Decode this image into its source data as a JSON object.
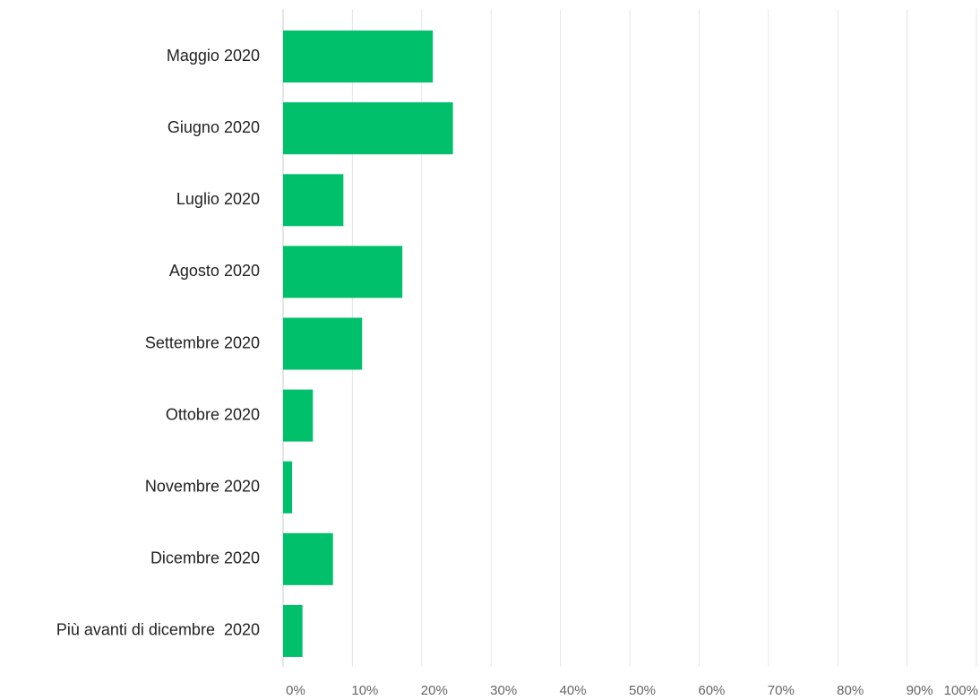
{
  "chart_data": {
    "type": "bar",
    "orientation": "horizontal",
    "categories": [
      "Maggio 2020",
      "Giugno 2020",
      "Luglio 2020",
      "Agosto 2020",
      "Settembre 2020",
      "Ottobre 2020",
      "Novembre 2020",
      "Dicembre 2020",
      "Più avanti di dicembre  2020"
    ],
    "values": [
      21.6,
      24.5,
      8.7,
      17.2,
      11.4,
      4.3,
      1.3,
      7.2,
      2.8
    ],
    "color": "#00c06b",
    "xlim": [
      0,
      100
    ],
    "xticks": [
      {
        "value": 0,
        "label": "0%"
      },
      {
        "value": 10,
        "label": "10%"
      },
      {
        "value": 20,
        "label": "20%"
      },
      {
        "value": 30,
        "label": "30%"
      },
      {
        "value": 40,
        "label": "40%"
      },
      {
        "value": 50,
        "label": "50%"
      },
      {
        "value": 60,
        "label": "60%"
      },
      {
        "value": 70,
        "label": "70%"
      },
      {
        "value": 80,
        "label": "80%"
      },
      {
        "value": 90,
        "label": "90%"
      },
      {
        "value": 100,
        "label": "100%"
      }
    ],
    "grid": true
  }
}
